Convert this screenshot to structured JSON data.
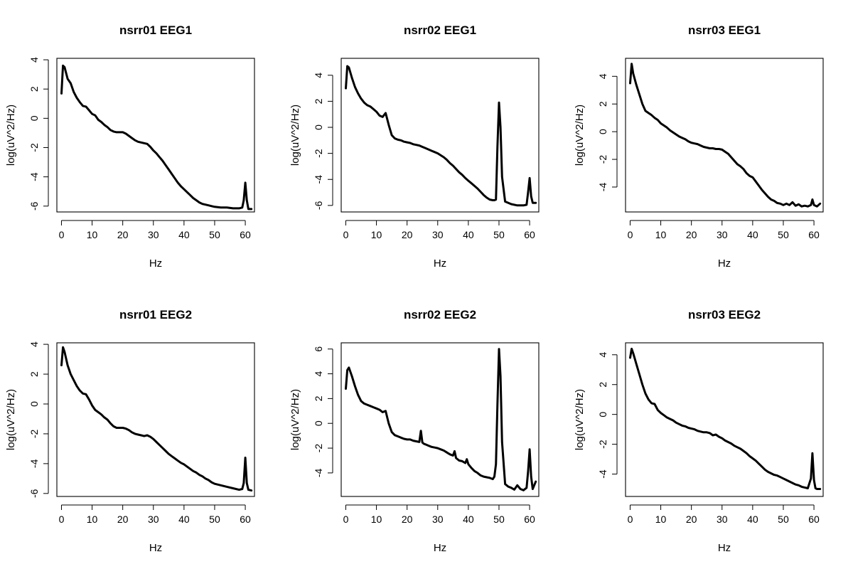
{
  "chart_data": [
    {
      "type": "line",
      "title": "nsrr01 EEG1",
      "xlabel": "Hz",
      "ylabel": "log(uV^2/Hz)",
      "xlim": [
        -1.5,
        63
      ],
      "ylim": [
        -6.4,
        4.1
      ],
      "xticks": [
        0,
        10,
        20,
        30,
        40,
        50,
        60
      ],
      "yticks": [
        -6,
        -4,
        -2,
        0,
        2,
        4
      ],
      "series": [
        {
          "x": [
            0,
            0.5,
            1,
            2,
            3,
            4,
            5,
            6,
            7,
            8,
            9,
            10,
            11,
            12,
            13,
            14,
            15,
            16,
            17,
            18,
            19,
            20,
            21,
            22,
            23,
            24,
            25,
            26,
            27,
            28,
            29,
            30,
            31,
            32,
            33,
            34,
            35,
            36,
            37,
            38,
            39,
            40,
            41,
            42,
            43,
            44,
            45,
            46,
            47,
            48,
            49,
            50,
            52,
            54,
            56,
            58,
            59,
            59.5,
            60,
            60.5,
            61,
            62
          ],
          "y": [
            1.7,
            3.6,
            3.5,
            2.7,
            2.4,
            1.8,
            1.4,
            1.1,
            0.85,
            0.8,
            0.55,
            0.3,
            0.2,
            -0.1,
            -0.25,
            -0.45,
            -0.6,
            -0.8,
            -0.9,
            -0.95,
            -0.95,
            -0.95,
            -1.05,
            -1.2,
            -1.35,
            -1.5,
            -1.6,
            -1.65,
            -1.7,
            -1.75,
            -1.95,
            -2.2,
            -2.4,
            -2.65,
            -2.9,
            -3.2,
            -3.5,
            -3.8,
            -4.1,
            -4.4,
            -4.65,
            -4.85,
            -5.05,
            -5.25,
            -5.45,
            -5.6,
            -5.75,
            -5.85,
            -5.9,
            -5.95,
            -6.0,
            -6.05,
            -6.1,
            -6.1,
            -6.15,
            -6.15,
            -6.1,
            -5.6,
            -4.4,
            -5.6,
            -6.2,
            -6.2
          ]
        }
      ]
    },
    {
      "type": "line",
      "title": "nsrr02 EEG1",
      "xlabel": "Hz",
      "ylabel": "log(uV^2/Hz)",
      "xlim": [
        -1.5,
        63
      ],
      "ylim": [
        -6.5,
        5.3
      ],
      "xticks": [
        0,
        10,
        20,
        30,
        40,
        50,
        60
      ],
      "yticks": [
        -6,
        -4,
        -2,
        0,
        2,
        4
      ],
      "series": [
        {
          "x": [
            0,
            0.5,
            1,
            2,
            3,
            4,
            5,
            6,
            7,
            8,
            9,
            10,
            11,
            12,
            13,
            14,
            15,
            16,
            17,
            18,
            19,
            20,
            21,
            22,
            23,
            24,
            25,
            26,
            27,
            28,
            29,
            30,
            31,
            32,
            33,
            34,
            35,
            36,
            37,
            38,
            39,
            40,
            41,
            42,
            43,
            44,
            45,
            46,
            47,
            48,
            48.5,
            49,
            49.5,
            50,
            50.5,
            51,
            52,
            54,
            56,
            58,
            59,
            59.5,
            60,
            60.5,
            61,
            62
          ],
          "y": [
            3.0,
            4.7,
            4.6,
            3.8,
            3.1,
            2.6,
            2.2,
            1.9,
            1.7,
            1.6,
            1.4,
            1.2,
            0.9,
            0.8,
            1.1,
            0.2,
            -0.6,
            -0.85,
            -0.95,
            -1.0,
            -1.1,
            -1.15,
            -1.2,
            -1.3,
            -1.35,
            -1.4,
            -1.5,
            -1.6,
            -1.7,
            -1.8,
            -1.9,
            -2.0,
            -2.15,
            -2.3,
            -2.5,
            -2.75,
            -2.95,
            -3.2,
            -3.45,
            -3.65,
            -3.9,
            -4.1,
            -4.3,
            -4.5,
            -4.7,
            -4.95,
            -5.2,
            -5.4,
            -5.55,
            -5.6,
            -5.6,
            -5.55,
            -1.5,
            1.9,
            0.0,
            -3.8,
            -5.7,
            -5.9,
            -6.0,
            -6.0,
            -5.95,
            -5.0,
            -3.9,
            -5.3,
            -5.8,
            -5.8
          ]
        }
      ]
    },
    {
      "type": "line",
      "title": "nsrr03 EEG1",
      "xlabel": "Hz",
      "ylabel": "log(uV^2/Hz)",
      "xlim": [
        -1.5,
        63
      ],
      "ylim": [
        -5.8,
        5.3
      ],
      "xticks": [
        0,
        10,
        20,
        30,
        40,
        50,
        60
      ],
      "yticks": [
        -4,
        -2,
        0,
        2,
        4
      ],
      "series": [
        {
          "x": [
            0,
            0.5,
            1,
            2,
            3,
            4,
            5,
            6,
            7,
            8,
            9,
            10,
            11,
            12,
            13,
            14,
            15,
            16,
            17,
            18,
            19,
            20,
            21,
            22,
            23,
            24,
            25,
            26,
            27,
            28,
            29,
            30,
            31,
            32,
            33,
            34,
            35,
            36,
            37,
            38,
            39,
            40,
            41,
            42,
            43,
            44,
            45,
            46,
            47,
            48,
            49,
            50,
            51,
            52,
            53,
            54,
            55,
            56,
            57,
            58,
            59,
            59.5,
            60,
            60.5,
            61,
            62
          ],
          "y": [
            3.5,
            4.9,
            4.2,
            3.4,
            2.7,
            2.0,
            1.5,
            1.35,
            1.2,
            1.0,
            0.85,
            0.6,
            0.45,
            0.3,
            0.1,
            -0.05,
            -0.2,
            -0.35,
            -0.45,
            -0.55,
            -0.7,
            -0.8,
            -0.85,
            -0.9,
            -1.0,
            -1.1,
            -1.15,
            -1.2,
            -1.2,
            -1.25,
            -1.25,
            -1.3,
            -1.45,
            -1.6,
            -1.85,
            -2.1,
            -2.35,
            -2.5,
            -2.7,
            -3.0,
            -3.2,
            -3.3,
            -3.6,
            -3.9,
            -4.2,
            -4.45,
            -4.7,
            -4.9,
            -5.0,
            -5.15,
            -5.2,
            -5.3,
            -5.2,
            -5.3,
            -5.1,
            -5.35,
            -5.25,
            -5.4,
            -5.35,
            -5.4,
            -5.3,
            -4.9,
            -5.3,
            -5.35,
            -5.4,
            -5.2
          ]
        }
      ]
    },
    {
      "type": "line",
      "title": "nsrr01 EEG2",
      "xlabel": "Hz",
      "ylabel": "log(uV^2/Hz)",
      "xlim": [
        -1.5,
        63
      ],
      "ylim": [
        -6.2,
        4.1
      ],
      "xticks": [
        0,
        10,
        20,
        30,
        40,
        50,
        60
      ],
      "yticks": [
        -6,
        -4,
        -2,
        0,
        2,
        4
      ],
      "series": [
        {
          "x": [
            0,
            0.5,
            1,
            2,
            3,
            4,
            5,
            6,
            7,
            8,
            9,
            10,
            11,
            12,
            13,
            14,
            15,
            16,
            17,
            18,
            19,
            20,
            21,
            22,
            23,
            24,
            25,
            26,
            27,
            28,
            29,
            30,
            31,
            32,
            33,
            34,
            35,
            36,
            37,
            38,
            39,
            40,
            41,
            42,
            43,
            44,
            45,
            46,
            47,
            48,
            49,
            50,
            52,
            54,
            56,
            58,
            59,
            59.5,
            60,
            60.5,
            61,
            62
          ],
          "y": [
            2.6,
            3.8,
            3.5,
            2.6,
            2.0,
            1.6,
            1.2,
            0.9,
            0.7,
            0.65,
            0.3,
            -0.1,
            -0.4,
            -0.55,
            -0.7,
            -0.9,
            -1.05,
            -1.3,
            -1.5,
            -1.6,
            -1.6,
            -1.6,
            -1.65,
            -1.75,
            -1.9,
            -2.0,
            -2.05,
            -2.1,
            -2.15,
            -2.1,
            -2.2,
            -2.35,
            -2.55,
            -2.75,
            -2.95,
            -3.15,
            -3.35,
            -3.5,
            -3.65,
            -3.8,
            -3.95,
            -4.05,
            -4.2,
            -4.35,
            -4.5,
            -4.6,
            -4.75,
            -4.85,
            -5.0,
            -5.1,
            -5.25,
            -5.35,
            -5.45,
            -5.55,
            -5.65,
            -5.75,
            -5.7,
            -5.3,
            -3.6,
            -5.3,
            -5.75,
            -5.8
          ]
        }
      ]
    },
    {
      "type": "line",
      "title": "nsrr02 EEG2",
      "xlabel": "Hz",
      "ylabel": "log(uV^2/Hz)",
      "xlim": [
        -1.5,
        63
      ],
      "ylim": [
        -5.9,
        6.5
      ],
      "xticks": [
        0,
        10,
        20,
        30,
        40,
        50,
        60
      ],
      "yticks": [
        -4,
        -2,
        0,
        2,
        4,
        6
      ],
      "series": [
        {
          "x": [
            0,
            0.5,
            1,
            2,
            3,
            4,
            5,
            6,
            7,
            8,
            9,
            10,
            11,
            12,
            13,
            14,
            15,
            16,
            17,
            18,
            19,
            20,
            21,
            22,
            23,
            24,
            24.5,
            25,
            25.5,
            26,
            27,
            28,
            29,
            30,
            31,
            32,
            33,
            34,
            35,
            35.5,
            36,
            37,
            38,
            39,
            39.5,
            40,
            41,
            42,
            43,
            44,
            45,
            46,
            47,
            48,
            48.5,
            49,
            49.5,
            50,
            50.5,
            51,
            52,
            53,
            54,
            55,
            56,
            57,
            58,
            59,
            59.5,
            60,
            60.5,
            61,
            62
          ],
          "y": [
            2.8,
            4.3,
            4.5,
            3.8,
            3.0,
            2.3,
            1.8,
            1.6,
            1.5,
            1.4,
            1.3,
            1.2,
            1.1,
            0.9,
            1.0,
            0.0,
            -0.7,
            -0.95,
            -1.05,
            -1.15,
            -1.25,
            -1.3,
            -1.3,
            -1.4,
            -1.45,
            -1.5,
            -0.6,
            -1.55,
            -1.65,
            -1.7,
            -1.8,
            -1.9,
            -1.95,
            -2.0,
            -2.1,
            -2.2,
            -2.35,
            -2.5,
            -2.6,
            -2.25,
            -2.8,
            -3.0,
            -3.05,
            -3.2,
            -2.9,
            -3.3,
            -3.6,
            -3.85,
            -4.0,
            -4.2,
            -4.3,
            -4.35,
            -4.4,
            -4.5,
            -4.3,
            -3.3,
            1.5,
            6.0,
            3.8,
            -1.5,
            -4.9,
            -5.1,
            -5.2,
            -5.35,
            -5.0,
            -5.3,
            -5.4,
            -5.2,
            -3.9,
            -2.1,
            -4.3,
            -5.3,
            -4.7
          ]
        }
      ]
    },
    {
      "type": "line",
      "title": "nsrr03 EEG2",
      "xlabel": "Hz",
      "ylabel": "log(uV^2/Hz)",
      "xlim": [
        -1.5,
        63
      ],
      "ylim": [
        -5.5,
        4.8
      ],
      "xticks": [
        0,
        10,
        20,
        30,
        40,
        50,
        60
      ],
      "yticks": [
        -4,
        -2,
        0,
        2,
        4
      ],
      "series": [
        {
          "x": [
            0,
            0.5,
            1,
            2,
            3,
            4,
            5,
            6,
            7,
            8,
            9,
            10,
            11,
            12,
            13,
            14,
            15,
            16,
            17,
            18,
            19,
            20,
            21,
            22,
            23,
            24,
            25,
            26,
            27,
            28,
            29,
            30,
            31,
            32,
            33,
            34,
            35,
            36,
            37,
            38,
            39,
            40,
            41,
            42,
            43,
            44,
            45,
            46,
            47,
            48,
            49,
            50,
            51,
            52,
            53,
            54,
            55,
            56,
            57,
            58,
            59,
            59.5,
            60,
            60.5,
            61,
            62
          ],
          "y": [
            3.8,
            4.4,
            4.1,
            3.4,
            2.7,
            2.0,
            1.4,
            1.0,
            0.75,
            0.7,
            0.3,
            0.1,
            -0.05,
            -0.2,
            -0.3,
            -0.4,
            -0.55,
            -0.65,
            -0.75,
            -0.8,
            -0.9,
            -0.95,
            -1.0,
            -1.1,
            -1.15,
            -1.2,
            -1.2,
            -1.25,
            -1.4,
            -1.35,
            -1.5,
            -1.6,
            -1.75,
            -1.85,
            -1.95,
            -2.1,
            -2.2,
            -2.3,
            -2.45,
            -2.6,
            -2.8,
            -2.95,
            -3.1,
            -3.3,
            -3.5,
            -3.7,
            -3.85,
            -3.95,
            -4.05,
            -4.1,
            -4.2,
            -4.3,
            -4.4,
            -4.5,
            -4.6,
            -4.7,
            -4.75,
            -4.85,
            -4.9,
            -4.95,
            -4.3,
            -2.6,
            -4.4,
            -4.95,
            -5.0,
            -5.0
          ]
        }
      ]
    }
  ]
}
